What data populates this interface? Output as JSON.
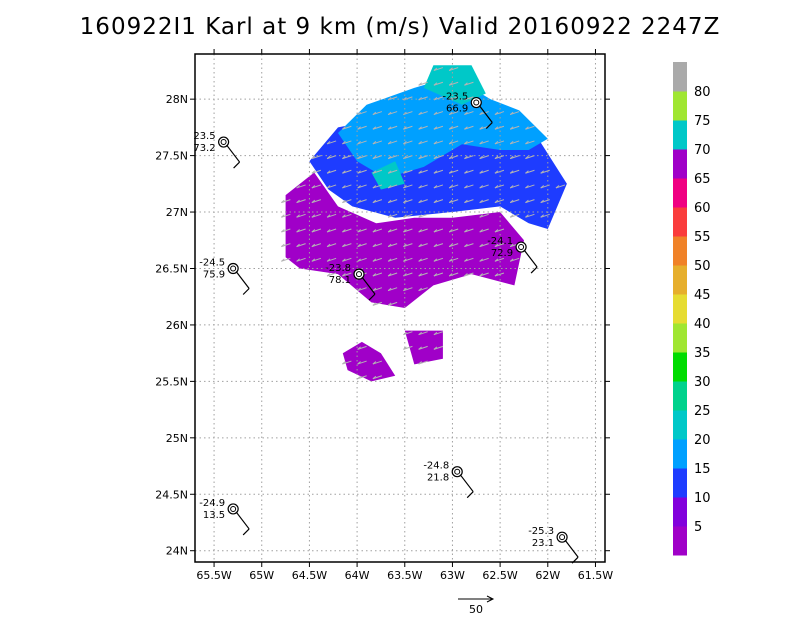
{
  "title": "160922I1 Karl at 9 km (m/s) Valid 20160922 2247Z",
  "chart_data": {
    "type": "heatmap",
    "title": "160922I1 Karl at 9 km (m/s) Valid 20160922 2247Z",
    "xlabel": "",
    "ylabel": "",
    "xlim": [
      -65.7,
      -61.4
    ],
    "ylim": [
      23.9,
      28.4
    ],
    "grid": true,
    "x_ticks": [
      {
        "value": -65.5,
        "label": "65.5W"
      },
      {
        "value": -65.0,
        "label": "65W"
      },
      {
        "value": -64.5,
        "label": "64.5W"
      },
      {
        "value": -64.0,
        "label": "64W"
      },
      {
        "value": -63.5,
        "label": "63.5W"
      },
      {
        "value": -63.0,
        "label": "63W"
      },
      {
        "value": -62.5,
        "label": "62.5W"
      },
      {
        "value": -62.0,
        "label": "62W"
      },
      {
        "value": -61.5,
        "label": "61.5W"
      }
    ],
    "y_ticks": [
      {
        "value": 24.0,
        "label": "24N"
      },
      {
        "value": 24.5,
        "label": "24.5N"
      },
      {
        "value": 25.0,
        "label": "25N"
      },
      {
        "value": 25.5,
        "label": "25.5N"
      },
      {
        "value": 26.0,
        "label": "26N"
      },
      {
        "value": 26.5,
        "label": "26.5N"
      },
      {
        "value": 27.0,
        "label": "27N"
      },
      {
        "value": 27.5,
        "label": "27.5N"
      },
      {
        "value": 28.0,
        "label": "28N"
      }
    ],
    "colorbar": {
      "labels": [
        "5",
        "10",
        "15",
        "20",
        "25",
        "30",
        "35",
        "40",
        "45",
        "50",
        "55",
        "60",
        "65",
        "70",
        "75",
        "80"
      ],
      "colors": [
        "#a000c8",
        "#8200dc",
        "#1e3cff",
        "#00a0ff",
        "#00c8c8",
        "#00d28c",
        "#00dc00",
        "#a0e632",
        "#e6dc32",
        "#e6af2d",
        "#f08228",
        "#fa3c3c",
        "#f00082",
        "#a000c8",
        "#00c8c8",
        "#a0e632",
        "#aaaaaa"
      ]
    },
    "wind_regions": [
      {
        "name": "purple",
        "color": "#a000c8",
        "points": [
          [
            -64.75,
            27.15
          ],
          [
            -64.45,
            27.35
          ],
          [
            -64.2,
            27.05
          ],
          [
            -63.8,
            26.9
          ],
          [
            -63.4,
            26.95
          ],
          [
            -63.0,
            26.95
          ],
          [
            -62.5,
            27.0
          ],
          [
            -62.25,
            26.75
          ],
          [
            -62.35,
            26.35
          ],
          [
            -62.8,
            26.45
          ],
          [
            -63.2,
            26.35
          ],
          [
            -63.5,
            26.15
          ],
          [
            -63.85,
            26.2
          ],
          [
            -64.2,
            26.45
          ],
          [
            -64.6,
            26.5
          ],
          [
            -64.75,
            26.6
          ]
        ]
      },
      {
        "name": "purple-blob-a",
        "color": "#a000c8",
        "points": [
          [
            -63.95,
            25.85
          ],
          [
            -63.75,
            25.75
          ],
          [
            -63.6,
            25.55
          ],
          [
            -63.85,
            25.5
          ],
          [
            -64.1,
            25.6
          ],
          [
            -64.15,
            25.75
          ]
        ]
      },
      {
        "name": "purple-blob-b",
        "color": "#a000c8",
        "points": [
          [
            -63.5,
            25.95
          ],
          [
            -63.1,
            25.95
          ],
          [
            -63.1,
            25.7
          ],
          [
            -63.4,
            25.65
          ]
        ]
      },
      {
        "name": "blue",
        "color": "#1e3cff",
        "points": [
          [
            -64.5,
            27.45
          ],
          [
            -64.2,
            27.75
          ],
          [
            -63.6,
            27.85
          ],
          [
            -63.0,
            27.95
          ],
          [
            -62.55,
            27.85
          ],
          [
            -62.1,
            27.65
          ],
          [
            -61.8,
            27.25
          ],
          [
            -62.0,
            26.85
          ],
          [
            -62.2,
            26.9
          ],
          [
            -62.5,
            27.05
          ],
          [
            -63.0,
            27.0
          ],
          [
            -63.6,
            26.95
          ],
          [
            -64.05,
            27.05
          ],
          [
            -64.3,
            27.2
          ]
        ]
      },
      {
        "name": "lightblue",
        "color": "#00a0ff",
        "points": [
          [
            -64.2,
            27.7
          ],
          [
            -63.9,
            27.95
          ],
          [
            -63.4,
            28.1
          ],
          [
            -63.0,
            28.2
          ],
          [
            -62.6,
            28.0
          ],
          [
            -62.3,
            27.9
          ],
          [
            -62.0,
            27.65
          ],
          [
            -62.2,
            27.55
          ],
          [
            -62.5,
            27.55
          ],
          [
            -62.9,
            27.6
          ],
          [
            -63.3,
            27.4
          ],
          [
            -63.7,
            27.3
          ],
          [
            -64.0,
            27.45
          ]
        ]
      },
      {
        "name": "teal",
        "color": "#00c8c8",
        "points": [
          [
            -63.2,
            28.3
          ],
          [
            -62.8,
            28.3
          ],
          [
            -62.65,
            28.05
          ],
          [
            -62.9,
            27.95
          ],
          [
            -63.3,
            28.1
          ]
        ]
      },
      {
        "name": "teal-patch",
        "color": "#00c8c8",
        "points": [
          [
            -63.6,
            27.45
          ],
          [
            -63.5,
            27.25
          ],
          [
            -63.75,
            27.2
          ],
          [
            -63.85,
            27.35
          ]
        ]
      }
    ],
    "observations": [
      {
        "lon": -65.4,
        "lat": 27.62,
        "top": "23.5",
        "bottom": "73.2"
      },
      {
        "lon": -62.75,
        "lat": 27.97,
        "top": "-23.5",
        "bottom": "66.9"
      },
      {
        "lon": -65.3,
        "lat": 26.5,
        "top": "-24.5",
        "bottom": "75.9"
      },
      {
        "lon": -63.98,
        "lat": 26.45,
        "top": "-23.8",
        "bottom": "78.1"
      },
      {
        "lon": -62.28,
        "lat": 26.69,
        "top": "-24.1",
        "bottom": "72.9"
      },
      {
        "lon": -62.95,
        "lat": 24.7,
        "top": "-24.8",
        "bottom": "21.8"
      },
      {
        "lon": -65.3,
        "lat": 24.37,
        "top": "-24.9",
        "bottom": "13.5"
      },
      {
        "lon": -61.85,
        "lat": 24.12,
        "top": "-25.3",
        "bottom": "23.1"
      }
    ],
    "reference_vector": {
      "value": "50"
    }
  }
}
